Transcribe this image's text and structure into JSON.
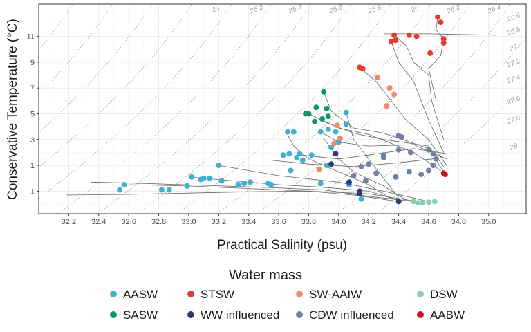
{
  "chart_data": {
    "type": "scatter",
    "xlabel": "Practical Salinity (psu)",
    "ylabel": "Conservative Temperature (°C)",
    "xlim": [
      32.0,
      35.25
    ],
    "ylim": [
      -2.75,
      13.5
    ],
    "x_ticks": [
      32.2,
      32.4,
      32.6,
      32.8,
      33.0,
      33.2,
      33.4,
      33.6,
      33.8,
      34.0,
      34.2,
      34.4,
      34.6,
      34.8,
      35.0
    ],
    "y_ticks": [
      -1,
      1,
      3,
      5,
      7,
      9,
      11
    ],
    "grid": true,
    "legend_title": "Water mass",
    "legend_position": "bottom",
    "isopycnals": {
      "style": "dotted",
      "color": "#9e9e9e",
      "labels": [
        "25",
        "25.2",
        "25.4",
        "25.6",
        "25.8",
        "26",
        "26.2",
        "26.4",
        "26.6",
        "26.8",
        "27",
        "27.2",
        "27.4",
        "27.6",
        "27.8",
        "28"
      ]
    },
    "profile_line_color": "#666666",
    "series": [
      {
        "name": "AASW",
        "color": "#3fb0d0",
        "points": [
          [
            32.54,
            -0.9
          ],
          [
            32.57,
            -0.5
          ],
          [
            32.82,
            -0.9
          ],
          [
            32.87,
            -0.9
          ],
          [
            32.99,
            -0.6
          ],
          [
            33.02,
            0.1
          ],
          [
            33.08,
            -0.1
          ],
          [
            33.1,
            0.0
          ],
          [
            33.14,
            0.0
          ],
          [
            33.22,
            -0.2
          ],
          [
            33.2,
            1.0
          ],
          [
            33.33,
            -0.5
          ],
          [
            33.37,
            -0.4
          ],
          [
            33.41,
            -0.3
          ],
          [
            33.53,
            -0.4
          ],
          [
            33.55,
            -0.5
          ],
          [
            33.63,
            1.8
          ],
          [
            33.67,
            1.9
          ],
          [
            33.72,
            1.6
          ],
          [
            33.74,
            1.9
          ],
          [
            33.76,
            1.4
          ],
          [
            33.82,
            1.8
          ],
          [
            33.68,
            0.6
          ],
          [
            33.88,
            3.6
          ],
          [
            33.66,
            3.6
          ],
          [
            33.7,
            3.6
          ],
          [
            33.93,
            3.8
          ],
          [
            34.05,
            5.1
          ],
          [
            34.0,
            2.8
          ],
          [
            34.05,
            4.2
          ],
          [
            33.98,
            3.6
          ],
          [
            33.95,
            2.4
          ],
          [
            33.88,
            -0.4
          ],
          [
            34.07,
            -0.5
          ],
          [
            34.15,
            -1.6
          ],
          [
            33.92,
            1.0
          ]
        ]
      },
      {
        "name": "SASW",
        "color": "#0d9670",
        "points": [
          [
            33.9,
            6.7
          ],
          [
            33.8,
            5.0
          ],
          [
            33.78,
            5.0
          ],
          [
            33.85,
            5.5
          ],
          [
            33.84,
            4.4
          ],
          [
            33.89,
            4.6
          ],
          [
            33.92,
            5.4
          ],
          [
            33.93,
            4.8
          ]
        ]
      },
      {
        "name": "STSW",
        "color": "#e53b2c",
        "points": [
          [
            34.14,
            8.6
          ],
          [
            34.16,
            8.5
          ],
          [
            34.35,
            10.6
          ],
          [
            34.38,
            10.7
          ],
          [
            34.37,
            11.1
          ],
          [
            34.47,
            11.1
          ],
          [
            34.52,
            11.0
          ],
          [
            34.61,
            9.7
          ],
          [
            34.66,
            12.5
          ],
          [
            34.68,
            12.1
          ],
          [
            34.7,
            10.8
          ],
          [
            34.7,
            10.5
          ]
        ]
      },
      {
        "name": "WW influenced",
        "color": "#2e3a7a",
        "points": [
          [
            33.95,
            1.1
          ],
          [
            33.98,
            1.9
          ],
          [
            34.07,
            -0.3
          ],
          [
            34.14,
            -1.0
          ],
          [
            34.14,
            -1.2
          ],
          [
            34.4,
            -1.8
          ]
        ]
      },
      {
        "name": "SW-AAIW",
        "color": "#ef8a6c",
        "points": [
          [
            34.26,
            7.8
          ],
          [
            34.34,
            7.0
          ],
          [
            34.32,
            5.6
          ],
          [
            34.37,
            6.5
          ],
          [
            33.99,
            4.1
          ],
          [
            33.97,
            2.7
          ],
          [
            33.87,
            0.7
          ],
          [
            34.01,
            3.1
          ]
        ]
      },
      {
        "name": "CDW influenced",
        "color": "#7180a6",
        "points": [
          [
            34.4,
            3.3
          ],
          [
            34.42,
            3.2
          ],
          [
            34.4,
            2.2
          ],
          [
            34.48,
            2.0
          ],
          [
            34.6,
            2.2
          ],
          [
            34.63,
            1.9
          ],
          [
            34.3,
            1.8
          ],
          [
            34.2,
            1.1
          ],
          [
            34.3,
            1.6
          ],
          [
            34.15,
            0.9
          ],
          [
            34.25,
            0.4
          ],
          [
            34.38,
            0.1
          ],
          [
            34.47,
            0.5
          ],
          [
            34.55,
            0.3
          ],
          [
            34.6,
            0.6
          ],
          [
            34.63,
            1.0
          ],
          [
            34.65,
            1.5
          ],
          [
            34.1,
            0.2
          ],
          [
            34.18,
            -0.2
          ]
        ]
      },
      {
        "name": "DSW",
        "color": "#89cfb4",
        "points": [
          [
            34.5,
            -1.8
          ],
          [
            34.53,
            -1.9
          ],
          [
            34.56,
            -1.9
          ],
          [
            34.6,
            -1.85
          ],
          [
            34.64,
            -1.8
          ]
        ]
      },
      {
        "name": "AABW",
        "color": "#c9111d",
        "points": [
          [
            34.7,
            0.4
          ],
          [
            34.71,
            0.3
          ]
        ]
      }
    ]
  }
}
